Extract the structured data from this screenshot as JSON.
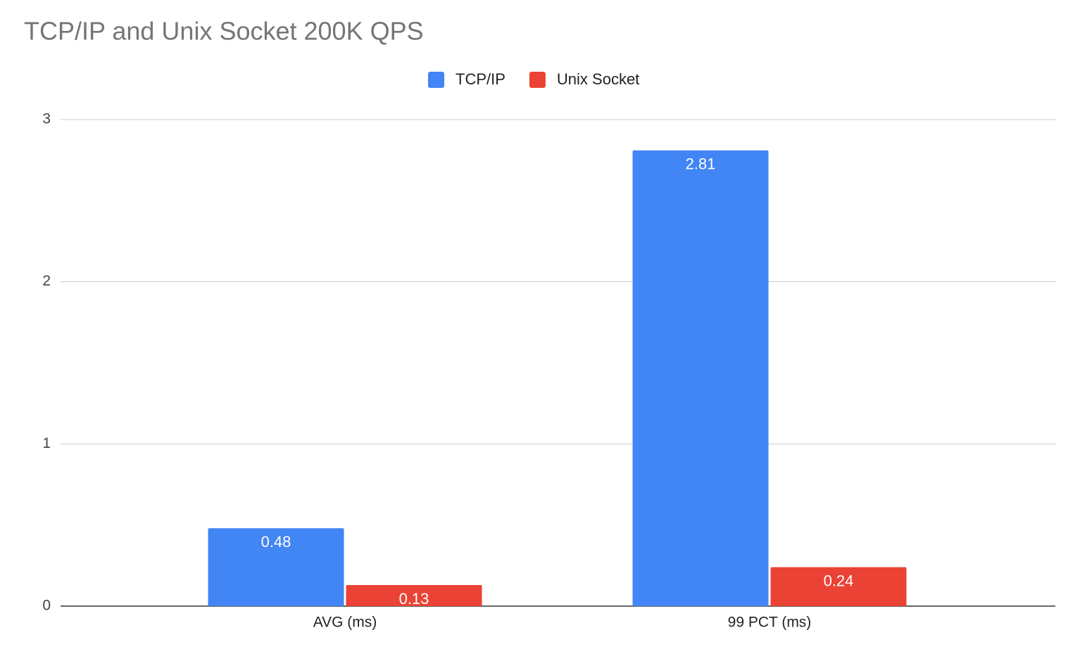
{
  "chart_data": {
    "type": "bar",
    "title": "TCP/IP and Unix Socket 200K QPS",
    "categories": [
      "AVG (ms)",
      "99 PCT (ms)"
    ],
    "series": [
      {
        "name": "TCP/IP",
        "color": "#4285f4",
        "values": [
          0.48,
          2.81
        ]
      },
      {
        "name": "Unix Socket",
        "color": "#ea4335",
        "values": [
          0.13,
          0.24
        ]
      }
    ],
    "ylim": [
      0,
      3
    ],
    "yticks": [
      0,
      1,
      2,
      3
    ],
    "grid": true,
    "legend": "top"
  }
}
